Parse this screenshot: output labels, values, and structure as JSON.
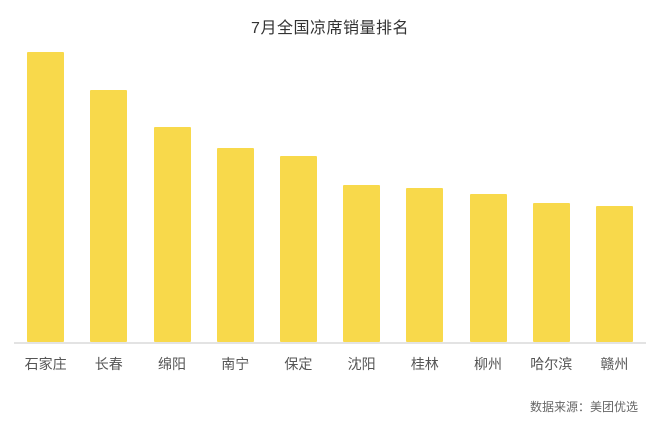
{
  "chart_data": {
    "type": "bar",
    "title": "7月全国凉席销量排名",
    "categories": [
      "石家庄",
      "长春",
      "绵阳",
      "南宁",
      "保定",
      "沈阳",
      "桂林",
      "柳州",
      "哈尔滨",
      "赣州"
    ],
    "values": [
      100,
      87,
      74,
      67,
      64,
      54,
      53,
      51,
      48,
      47
    ],
    "xlabel": "",
    "ylabel": "",
    "ylim": [
      0,
      100
    ],
    "grid": false,
    "legend": "none",
    "bar_color": "#F8D94B",
    "axis_line_color": "#e3e3e3",
    "source": "数据来源：美团优选"
  }
}
